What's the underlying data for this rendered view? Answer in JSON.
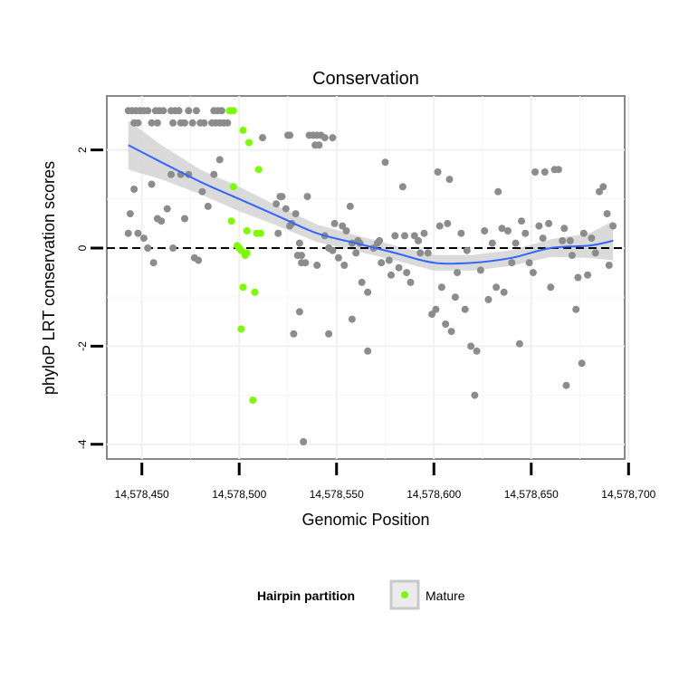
{
  "chart_data": {
    "type": "scatter",
    "title": "Conservation",
    "xlabel": "Genomic Position",
    "ylabel": "phyloP LRT conservation scores",
    "xlim": [
      14578432,
      14578698
    ],
    "ylim": [
      -4.3,
      3.1
    ],
    "x_ticks": [
      14578450,
      14578500,
      14578550,
      14578600,
      14578650,
      14578700
    ],
    "x_tick_labels": [
      "14,578,450",
      "14,578,500",
      "14,578,550",
      "14,578,600",
      "14,578,650",
      "14,578,700"
    ],
    "y_ticks": [
      -4,
      -2,
      0,
      2
    ],
    "y_tick_labels": [
      "-4",
      "-2",
      "0",
      "2"
    ],
    "reference_line": 0,
    "grid": true,
    "legend": {
      "title": "Hairpin partition",
      "position": "bottom",
      "entries": [
        "Mature"
      ]
    },
    "colors": {
      "hairpin": "#8c8c8c",
      "mature": "#7cfc00",
      "smooth": "#3366ff",
      "ribbon": "#d3d3d3"
    },
    "series": [
      {
        "name": "Hairpin",
        "points": [
          [
            14578443,
            2.8
          ],
          [
            14578445,
            2.8
          ],
          [
            14578447,
            2.8
          ],
          [
            14578449,
            2.8
          ],
          [
            14578451,
            2.8
          ],
          [
            14578453,
            2.8
          ],
          [
            14578457,
            2.8
          ],
          [
            14578459,
            2.8
          ],
          [
            14578461,
            2.8
          ],
          [
            14578465,
            2.8
          ],
          [
            14578467,
            2.8
          ],
          [
            14578469,
            2.8
          ],
          [
            14578474,
            2.8
          ],
          [
            14578478,
            2.8
          ],
          [
            14578487,
            2.8
          ],
          [
            14578489,
            2.8
          ],
          [
            14578491,
            2.8
          ],
          [
            14578446,
            2.55
          ],
          [
            14578448,
            2.55
          ],
          [
            14578455,
            2.55
          ],
          [
            14578458,
            2.55
          ],
          [
            14578466,
            2.55
          ],
          [
            14578470,
            2.55
          ],
          [
            14578472,
            2.55
          ],
          [
            14578476,
            2.55
          ],
          [
            14578480,
            2.55
          ],
          [
            14578482,
            2.55
          ],
          [
            14578486,
            2.55
          ],
          [
            14578488,
            2.55
          ],
          [
            14578490,
            2.55
          ],
          [
            14578492,
            2.55
          ],
          [
            14578494,
            2.55
          ],
          [
            14578443,
            0.3
          ],
          [
            14578444,
            0.7
          ],
          [
            14578446,
            1.2
          ],
          [
            14578448,
            0.3
          ],
          [
            14578451,
            0.2
          ],
          [
            14578453,
            0.0
          ],
          [
            14578455,
            1.3
          ],
          [
            14578456,
            -0.3
          ],
          [
            14578458,
            0.6
          ],
          [
            14578460,
            0.55
          ],
          [
            14578463,
            0.8
          ],
          [
            14578465,
            1.5
          ],
          [
            14578466,
            0.0
          ],
          [
            14578470,
            1.5
          ],
          [
            14578472,
            0.6
          ],
          [
            14578474,
            1.5
          ],
          [
            14578477,
            -0.2
          ],
          [
            14578479,
            -0.25
          ],
          [
            14578481,
            1.15
          ],
          [
            14578484,
            0.85
          ],
          [
            14578487,
            1.5
          ],
          [
            14578490,
            1.8
          ],
          [
            14578512,
            2.25
          ],
          [
            14578519,
            0.9
          ],
          [
            14578520,
            0.3
          ],
          [
            14578521,
            1.05
          ],
          [
            14578522,
            1.05
          ],
          [
            14578524,
            0.8
          ],
          [
            14578525,
            2.3
          ],
          [
            14578526,
            2.3
          ],
          [
            14578526,
            0.45
          ],
          [
            14578527,
            0.5
          ],
          [
            14578529,
            0.7
          ],
          [
            14578530,
            -0.15
          ],
          [
            14578531,
            0.1
          ],
          [
            14578532,
            -0.15
          ],
          [
            14578532,
            -0.3
          ],
          [
            14578534,
            -0.3
          ],
          [
            14578535,
            1.05
          ],
          [
            14578528,
            -1.75
          ],
          [
            14578531,
            -1.3
          ],
          [
            14578533,
            -3.95
          ],
          [
            14578536,
            2.3
          ],
          [
            14578538,
            2.3
          ],
          [
            14578539,
            2.1
          ],
          [
            14578540,
            2.3
          ],
          [
            14578541,
            2.1
          ],
          [
            14578542,
            2.3
          ],
          [
            14578544,
            2.25
          ],
          [
            14578548,
            2.25
          ],
          [
            14578544,
            0.25
          ],
          [
            14578546,
            0.0
          ],
          [
            14578548,
            -0.05
          ],
          [
            14578540,
            -0.35
          ],
          [
            14578546,
            -1.75
          ],
          [
            14578549,
            0.5
          ],
          [
            14578551,
            -0.2
          ],
          [
            14578553,
            0.45
          ],
          [
            14578555,
            0.35
          ],
          [
            14578557,
            0.85
          ],
          [
            14578554,
            -0.35
          ],
          [
            14578558,
            0.1
          ],
          [
            14578560,
            -0.1
          ],
          [
            14578562,
            0.1
          ],
          [
            14578561,
            0.15
          ],
          [
            14578558,
            -1.45
          ],
          [
            14578563,
            -0.7
          ],
          [
            14578566,
            -0.9
          ],
          [
            14578566,
            -2.1
          ],
          [
            14578569,
            0.0
          ],
          [
            14578571,
            0.1
          ],
          [
            14578572,
            0.15
          ],
          [
            14578573,
            -0.3
          ],
          [
            14578575,
            1.75
          ],
          [
            14578577,
            -0.25
          ],
          [
            14578578,
            -0.55
          ],
          [
            14578580,
            0.25
          ],
          [
            14578582,
            -0.4
          ],
          [
            14578584,
            1.25
          ],
          [
            14578585,
            0.25
          ],
          [
            14578586,
            -0.5
          ],
          [
            14578588,
            -0.7
          ],
          [
            14578590,
            0.25
          ],
          [
            14578592,
            0.15
          ],
          [
            14578593,
            -0.1
          ],
          [
            14578595,
            0.3
          ],
          [
            14578597,
            -0.1
          ],
          [
            14578599,
            -1.35
          ],
          [
            14578601,
            -1.25
          ],
          [
            14578602,
            1.55
          ],
          [
            14578603,
            0.45
          ],
          [
            14578604,
            -0.8
          ],
          [
            14578606,
            -1.55
          ],
          [
            14578607,
            0.5
          ],
          [
            14578608,
            1.4
          ],
          [
            14578609,
            -1.7
          ],
          [
            14578611,
            -1.0
          ],
          [
            14578612,
            -0.5
          ],
          [
            14578614,
            0.3
          ],
          [
            14578616,
            -1.25
          ],
          [
            14578617,
            -0.05
          ],
          [
            14578619,
            -2.0
          ],
          [
            14578621,
            -3.0
          ],
          [
            14578622,
            -2.1
          ],
          [
            14578624,
            -0.45
          ],
          [
            14578626,
            0.35
          ],
          [
            14578628,
            -1.05
          ],
          [
            14578630,
            0.1
          ],
          [
            14578632,
            -0.8
          ],
          [
            14578633,
            1.15
          ],
          [
            14578635,
            0.4
          ],
          [
            14578636,
            -0.9
          ],
          [
            14578638,
            0.35
          ],
          [
            14578640,
            -0.3
          ],
          [
            14578642,
            0.1
          ],
          [
            14578644,
            -1.95
          ],
          [
            14578645,
            0.55
          ],
          [
            14578647,
            0.3
          ],
          [
            14578649,
            -0.3
          ],
          [
            14578651,
            -0.5
          ],
          [
            14578652,
            1.55
          ],
          [
            14578654,
            0.45
          ],
          [
            14578656,
            0.2
          ],
          [
            14578657,
            1.55
          ],
          [
            14578659,
            0.5
          ],
          [
            14578660,
            -0.8
          ],
          [
            14578662,
            1.6
          ],
          [
            14578664,
            1.6
          ],
          [
            14578666,
            0.15
          ],
          [
            14578667,
            0.4
          ],
          [
            14578668,
            -2.8
          ],
          [
            14578670,
            0.15
          ],
          [
            14578671,
            -0.15
          ],
          [
            14578673,
            -1.25
          ],
          [
            14578674,
            -0.6
          ],
          [
            14578676,
            -2.35
          ],
          [
            14578677,
            0.3
          ],
          [
            14578679,
            -0.55
          ],
          [
            14578681,
            0.2
          ],
          [
            14578683,
            -0.1
          ],
          [
            14578685,
            1.15
          ],
          [
            14578687,
            1.25
          ],
          [
            14578689,
            0.7
          ],
          [
            14578690,
            -0.35
          ],
          [
            14578692,
            0.45
          ]
        ]
      },
      {
        "name": "Mature",
        "points": [
          [
            14578495,
            2.8
          ],
          [
            14578496,
            2.8
          ],
          [
            14578497,
            2.8
          ],
          [
            14578502,
            2.4
          ],
          [
            14578505,
            2.15
          ],
          [
            14578504,
            0.35
          ],
          [
            14578510,
            1.6
          ],
          [
            14578497,
            1.25
          ],
          [
            14578496,
            0.55
          ],
          [
            14578499,
            0.05
          ],
          [
            14578500,
            0.0
          ],
          [
            14578501,
            -0.05
          ],
          [
            14578504,
            -0.1
          ],
          [
            14578503,
            -0.15
          ],
          [
            14578502,
            -0.8
          ],
          [
            14578508,
            -0.9
          ],
          [
            14578501,
            -1.65
          ],
          [
            14578507,
            -3.1
          ],
          [
            14578509,
            0.3
          ],
          [
            14578511,
            0.3
          ]
        ]
      }
    ],
    "smooth_fit": {
      "x": [
        14578443,
        14578460,
        14578480,
        14578500,
        14578520,
        14578540,
        14578560,
        14578580,
        14578600,
        14578620,
        14578640,
        14578660,
        14578680,
        14578692
      ],
      "y": [
        2.1,
        1.75,
        1.35,
        1.0,
        0.65,
        0.3,
        0.1,
        -0.1,
        -0.3,
        -0.3,
        -0.2,
        0.0,
        0.05,
        0.15
      ],
      "band": [
        0.5,
        0.35,
        0.25,
        0.25,
        0.2,
        0.18,
        0.16,
        0.15,
        0.16,
        0.16,
        0.16,
        0.18,
        0.25,
        0.4
      ]
    }
  }
}
